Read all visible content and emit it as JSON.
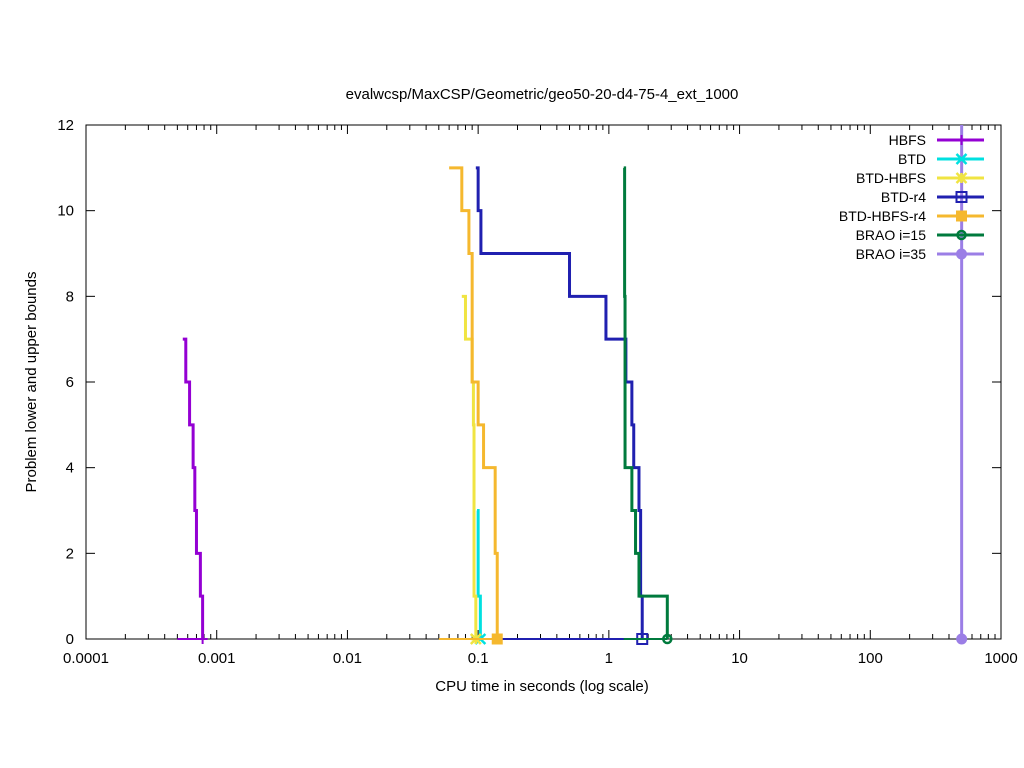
{
  "chart_data": {
    "type": "line",
    "title": "evalwcsp/MaxCSP/Geometric/geo50-20-d4-75-4_ext_1000",
    "xlabel": "CPU time in seconds (log scale)",
    "ylabel": "Problem lower and upper bounds",
    "xscale": "log",
    "xlim": [
      0.0001,
      1000
    ],
    "ylim": [
      0,
      12
    ],
    "x_ticks": [
      0.0001,
      0.001,
      0.01,
      0.1,
      1,
      10,
      100,
      1000
    ],
    "x_tick_labels": [
      "0.0001",
      "0.001",
      "0.01",
      "0.1",
      "1",
      "10",
      "100",
      "1000"
    ],
    "y_ticks": [
      0,
      2,
      4,
      6,
      8,
      10,
      12
    ],
    "y_tick_labels": [
      "0",
      "2",
      "4",
      "6",
      "8",
      "10",
      "12"
    ],
    "legend_position": "top-right",
    "grid": false,
    "series": [
      {
        "name": "HBFS",
        "color": "#9400d3",
        "marker": "plus",
        "upper_bound": [
          [
            0.00055,
            7
          ],
          [
            0.00058,
            6
          ],
          [
            0.00062,
            5
          ],
          [
            0.00066,
            4
          ],
          [
            0.00068,
            3
          ],
          [
            0.0007,
            2
          ],
          [
            0.00075,
            1
          ],
          [
            0.00078,
            0
          ]
        ],
        "lower_bound": [
          [
            0.0005,
            0
          ],
          [
            0.00078,
            0
          ]
        ],
        "final": [
          0.00078,
          0
        ]
      },
      {
        "name": "BTD",
        "color": "#00e0e0",
        "marker": "cross",
        "upper_bound": [
          [
            0.098,
            3
          ],
          [
            0.1,
            1
          ],
          [
            0.104,
            0
          ]
        ],
        "lower_bound": [
          [
            0.09,
            0
          ],
          [
            0.104,
            0
          ]
        ],
        "final": [
          0.104,
          0
        ]
      },
      {
        "name": "BTD-HBFS",
        "color": "#f0e442",
        "marker": "star",
        "upper_bound": [
          [
            0.075,
            8
          ],
          [
            0.08,
            7
          ],
          [
            0.09,
            6
          ],
          [
            0.092,
            5
          ],
          [
            0.093,
            1
          ],
          [
            0.096,
            0
          ]
        ],
        "lower_bound": [
          [
            0.08,
            0
          ],
          [
            0.096,
            0
          ]
        ],
        "final": [
          0.096,
          0
        ]
      },
      {
        "name": "BTD-r4",
        "color": "#2020b0",
        "marker": "square",
        "upper_bound": [
          [
            0.096,
            11
          ],
          [
            0.1,
            10
          ],
          [
            0.105,
            9
          ],
          [
            0.5,
            8
          ],
          [
            0.95,
            7
          ],
          [
            1.35,
            6
          ],
          [
            1.5,
            5
          ],
          [
            1.55,
            4
          ],
          [
            1.7,
            3
          ],
          [
            1.75,
            1
          ],
          [
            1.8,
            0
          ]
        ],
        "lower_bound": [
          [
            0.1,
            0
          ],
          [
            1.8,
            0
          ]
        ],
        "final": [
          1.8,
          0
        ]
      },
      {
        "name": "BTD-HBFS-r4",
        "color": "#f5b82e",
        "marker": "filled-square",
        "upper_bound": [
          [
            0.06,
            11
          ],
          [
            0.075,
            10
          ],
          [
            0.085,
            9
          ],
          [
            0.09,
            6
          ],
          [
            0.1,
            5
          ],
          [
            0.11,
            4
          ],
          [
            0.135,
            2
          ],
          [
            0.14,
            0
          ]
        ],
        "lower_bound": [
          [
            0.05,
            0
          ],
          [
            0.14,
            0
          ]
        ],
        "final": [
          0.14,
          0
        ]
      },
      {
        "name": "BRAO i=15",
        "color": "#007a3d",
        "marker": "circle",
        "upper_bound": [
          [
            1.3,
            11
          ],
          [
            1.32,
            8
          ],
          [
            1.33,
            4
          ],
          [
            1.5,
            3
          ],
          [
            1.6,
            2
          ],
          [
            1.7,
            1
          ],
          [
            2.8,
            0
          ]
        ],
        "lower_bound": [
          [
            1.3,
            0
          ],
          [
            2.8,
            0
          ]
        ],
        "final": [
          2.8,
          0
        ]
      },
      {
        "name": "BRAO i=35",
        "color": "#9b7ee6",
        "marker": "filled-circle",
        "upper_bound": [
          [
            500,
            12
          ],
          [
            500,
            0
          ]
        ],
        "lower_bound": [
          [
            500,
            0
          ]
        ],
        "final": [
          500,
          0
        ]
      }
    ]
  }
}
